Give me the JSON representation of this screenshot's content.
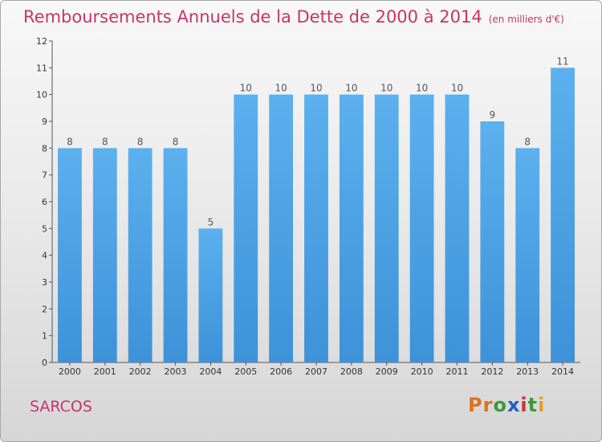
{
  "header": {
    "title": "Remboursements Annuels de la Dette de 2000 à 2014",
    "subtitle": "(en milliers d'€)"
  },
  "footer": {
    "commune": "SARCOS",
    "logo": [
      "P",
      "r",
      "o",
      "x",
      "i",
      "t",
      "i"
    ],
    "logo_colors": [
      "#e07020",
      "#e07020",
      "#3a9a3a",
      "#2060c0",
      "#d03030",
      "#3a9a3a",
      "#e0a020"
    ]
  },
  "colors": {
    "bar": "#3d92d8",
    "bar_light": "#5cb0ee",
    "axis": "#555555",
    "grid": "#cfcfcf"
  },
  "chart_data": {
    "type": "bar",
    "title": "Remboursements Annuels de la Dette de 2000 à 2014",
    "subtitle": "(en milliers d'€)",
    "categories": [
      "2000",
      "2001",
      "2002",
      "2003",
      "2004",
      "2005",
      "2006",
      "2007",
      "2008",
      "2009",
      "2010",
      "2011",
      "2012",
      "2013",
      "2014"
    ],
    "values": [
      8,
      8,
      8,
      8,
      5,
      10,
      10,
      10,
      10,
      10,
      10,
      10,
      9,
      8,
      11
    ],
    "yticks": [
      0,
      1,
      2,
      3,
      4,
      5,
      6,
      7,
      8,
      9,
      10,
      11,
      12
    ],
    "ylim": [
      0,
      12
    ],
    "xlabel": "",
    "ylabel": "",
    "grid": false,
    "data_labels": true
  }
}
